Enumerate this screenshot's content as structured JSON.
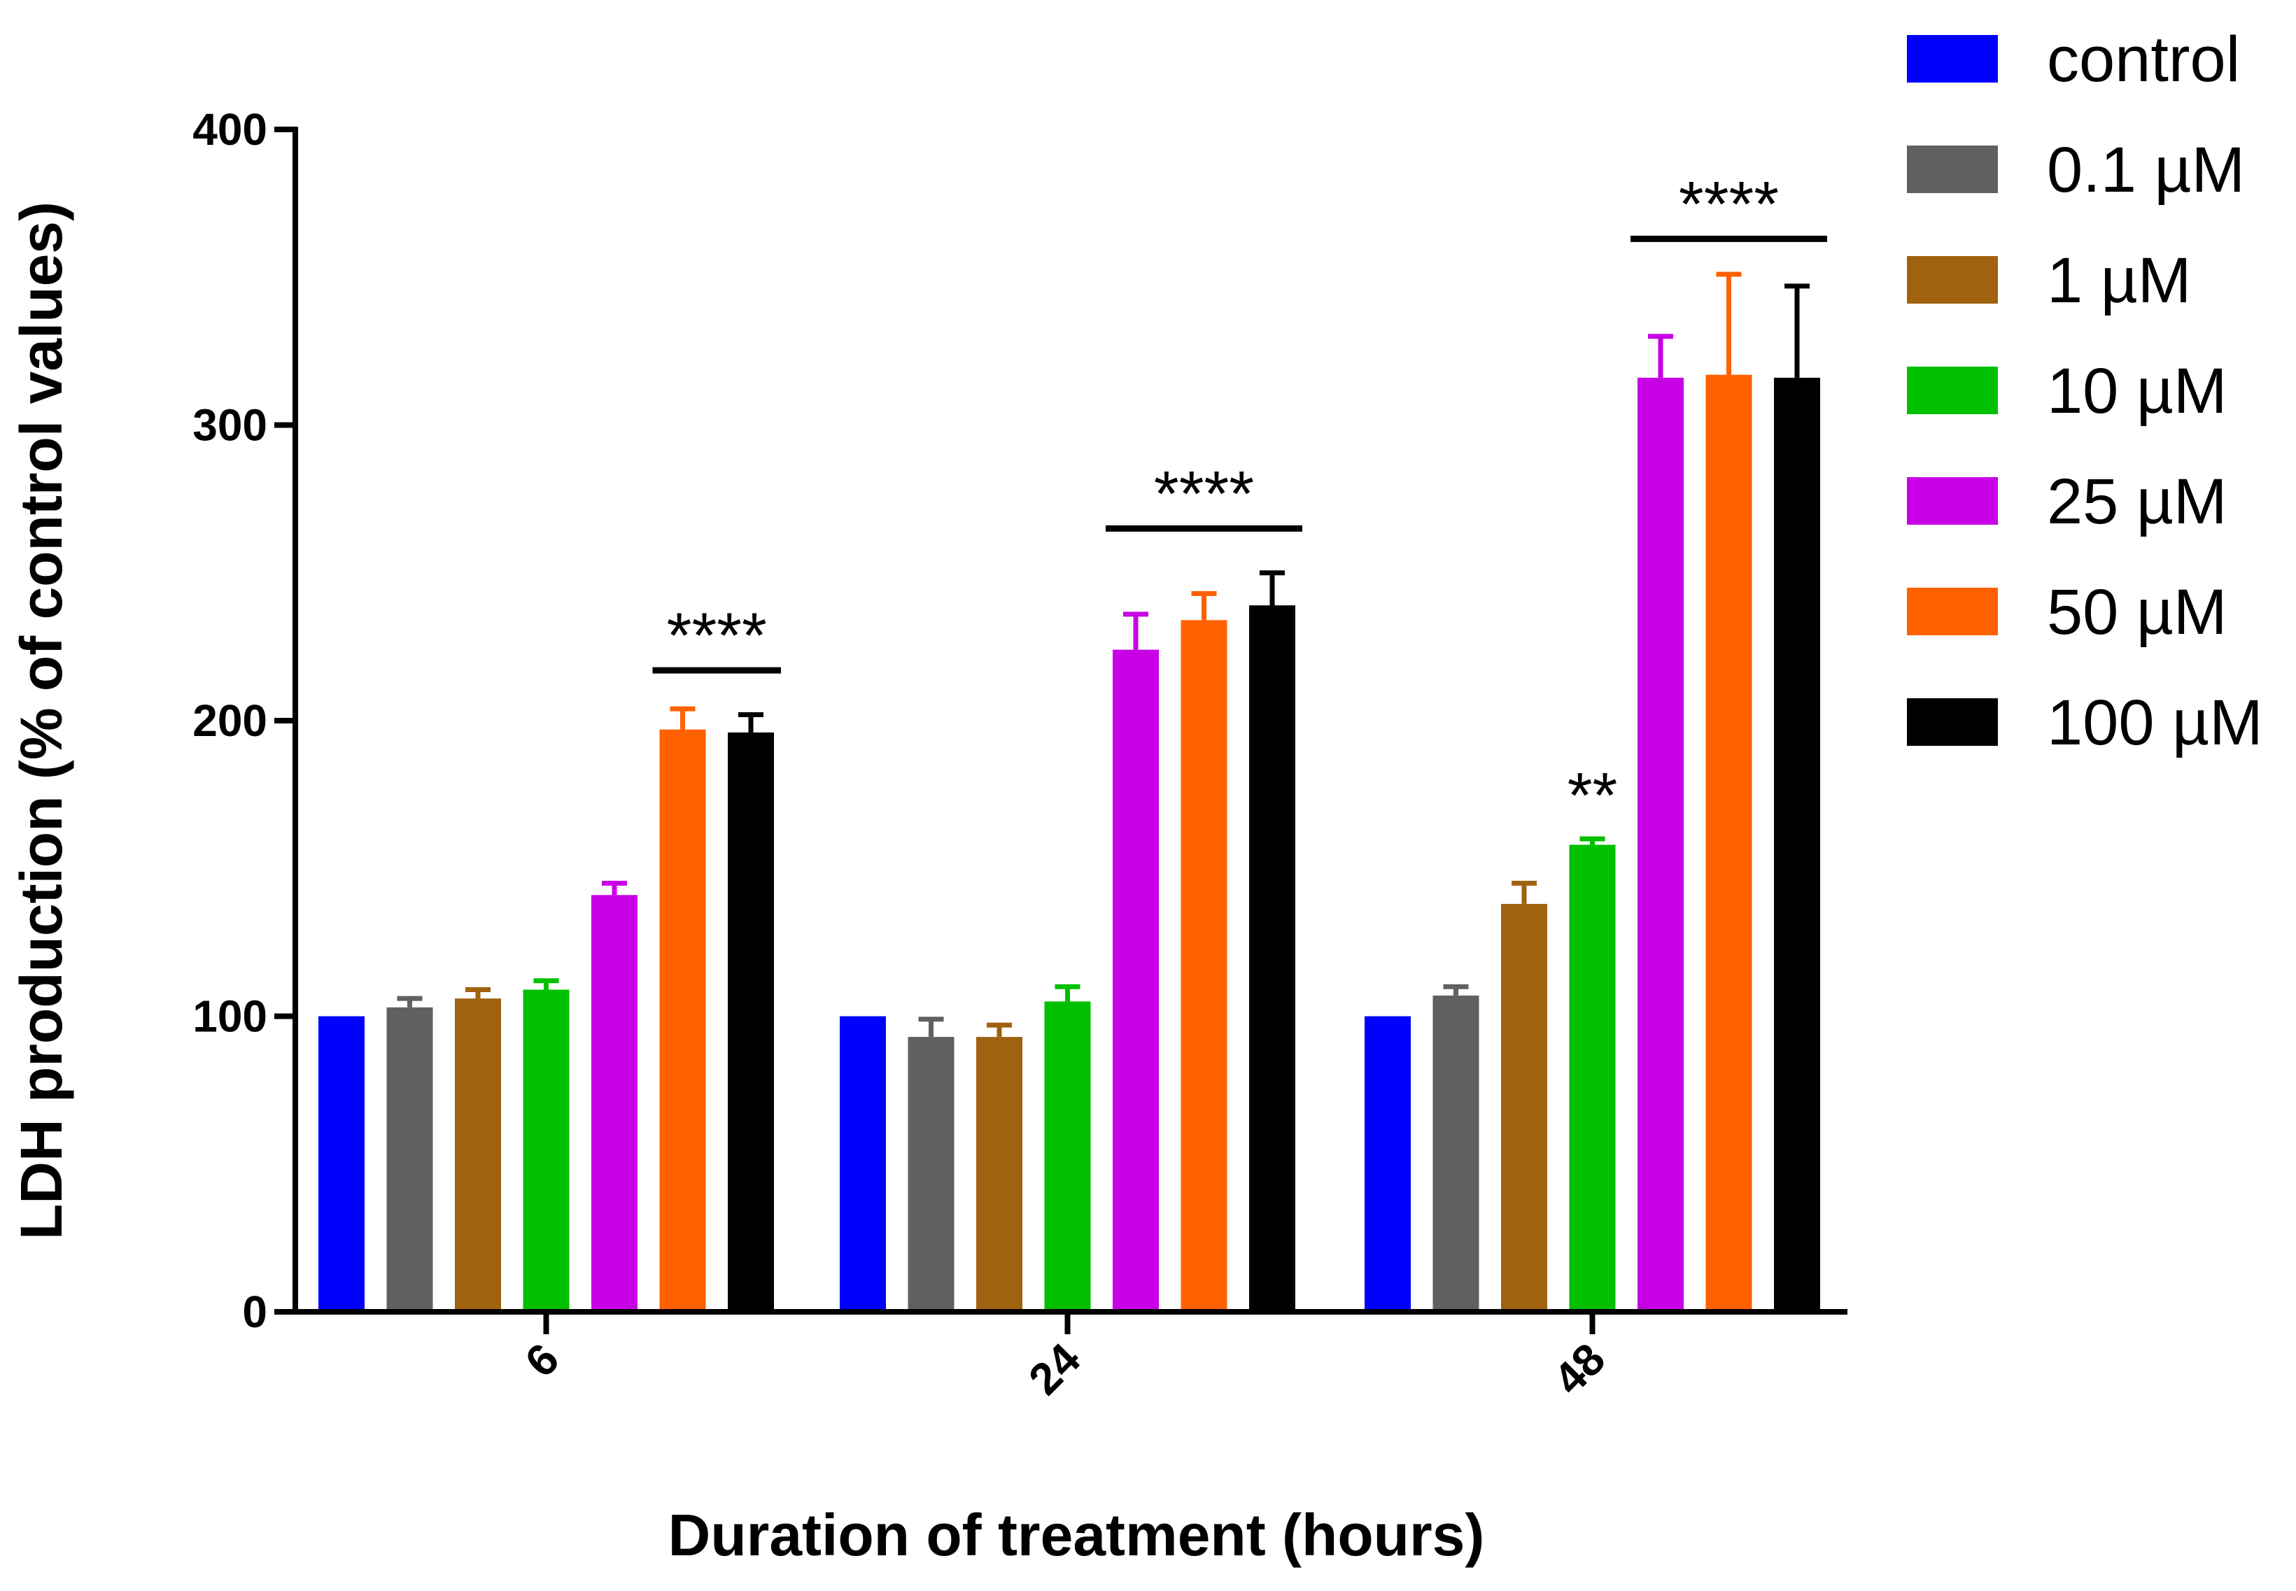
{
  "chart_data": {
    "type": "bar",
    "title": "",
    "xlabel": "Duration of treatment (hours)",
    "ylabel": "LDH production (% of control values)",
    "ylim": [
      0,
      400
    ],
    "yticks": [
      "0",
      "100",
      "200",
      "300",
      "400"
    ],
    "categories": [
      "6",
      "24",
      "48"
    ],
    "series": [
      {
        "name": "control",
        "color": "#0000ff",
        "values": [
          100,
          100,
          100
        ],
        "errors": [
          0,
          0,
          0
        ]
      },
      {
        "name": "0.1 µM",
        "color": "#606060",
        "values": [
          103,
          93,
          107
        ],
        "errors": [
          3,
          6,
          3
        ]
      },
      {
        "name": "1 µM",
        "color": "#a0620f",
        "values": [
          106,
          93,
          138
        ],
        "errors": [
          3,
          4,
          7
        ]
      },
      {
        "name": "10 µM",
        "color": "#00c000",
        "values": [
          109,
          105,
          158
        ],
        "errors": [
          3,
          5,
          2
        ]
      },
      {
        "name": "25 µM",
        "color": "#c800e6",
        "values": [
          141,
          224,
          316
        ],
        "errors": [
          4,
          12,
          14
        ]
      },
      {
        "name": "50 µM",
        "color": "#ff6000",
        "values": [
          197,
          234,
          317
        ],
        "errors": [
          7,
          9,
          34
        ]
      },
      {
        "name": "100 µM",
        "color": "#000000",
        "values": [
          196,
          239,
          316
        ],
        "errors": [
          6,
          11,
          31
        ]
      }
    ],
    "annotations": [
      {
        "text": "****",
        "category": "6",
        "from_series": 5,
        "to_series": 6,
        "y": 217
      },
      {
        "text": "****",
        "category": "24",
        "from_series": 4,
        "to_series": 6,
        "y": 265
      },
      {
        "text": "**",
        "category": "48",
        "from_series": 3,
        "to_series": 3,
        "y": 172
      },
      {
        "text": "****",
        "category": "48",
        "from_series": 4,
        "to_series": 6,
        "y": 363
      }
    ]
  }
}
